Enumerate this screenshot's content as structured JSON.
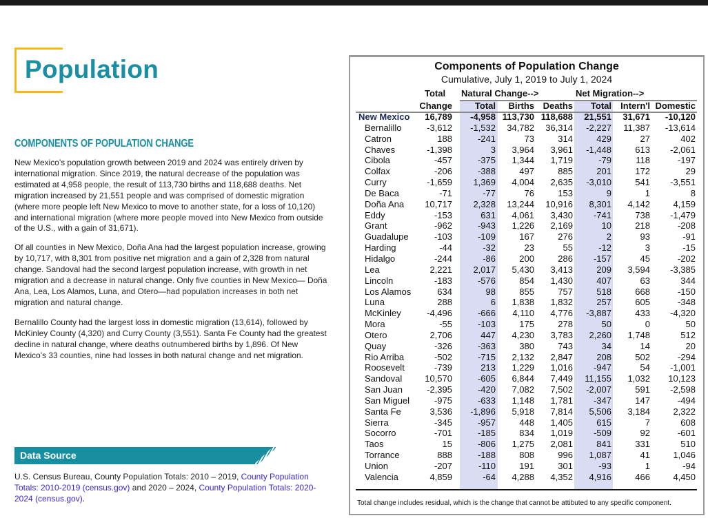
{
  "page": {
    "title": "Population",
    "section_heading": "COMPONENTS OF POPULATION CHANGE",
    "paragraphs": [
      "New Mexico’s population growth between 2019 and 2024 was entirely driven by international migration. Since 2019, the natural decrease of the population was estimated at 4,958 people, the result of 113,730 births and 118,688 deaths. Net migration increased by 21,551 people and was comprised of domestic migration (where more people left New Mexico to move to another state, for a loss of 10,120) and international migration (where more people moved into New Mexico from outside of the U.S., with a gain of 31,671).",
      "Of all counties in New Mexico, Doña Ana had the largest population increase, growing by 10,717, with 8,301 from positive net migration and a gain of 2,328 from natural change. Sandoval had the second largest population increase, with growth in net migration and a decrease in natural change. Only five counties in New Mexico— Doña Ana, Lea, Los Alamos, Luna, and Otero—had population increases in both net migration and natural change.",
      "Bernalillo County had the largest loss in domestic migration (13,614), followed by McKinley County (4,320) and Curry County (3,551). Santa Fe County had the greatest decline in natural change, where deaths outnumbered births by 1,896. Of New Mexico’s 33 counties, nine had losses in both natural change and net migration."
    ],
    "data_source": {
      "label": "Data Source",
      "text1": "U.S. Census Bureau, County Population Totals: 2010 – 2019, ",
      "link1": "County Population Totals: 2010-2019 (census.gov)",
      "text2": " and 2020 – 2024, ",
      "link2": "County Population Totals: 2020-2024 (census.gov)",
      "text3": "."
    }
  },
  "table": {
    "title": "Components of Population Change",
    "subtitle": "Cumulative, July 1, 2019 to July 1, 2024",
    "group_headers": {
      "total": "Total",
      "natural": "Natural Change-->",
      "migration": "Net Migration-->"
    },
    "columns": [
      "Change",
      "Total",
      "Births",
      "Deaths",
      "Total",
      "Intern'l",
      "Domestic"
    ],
    "rows": [
      [
        "New Mexico",
        "16,789",
        "-4,958",
        "113,730",
        "118,688",
        "21,551",
        "31,671",
        "-10,120"
      ],
      [
        "Bernalillo",
        "-3,612",
        "-1,532",
        "34,782",
        "36,314",
        "-2,227",
        "11,387",
        "-13,614"
      ],
      [
        "Catron",
        "188",
        "-241",
        "73",
        "314",
        "429",
        "27",
        "402"
      ],
      [
        "Chaves",
        "-1,398",
        "3",
        "3,964",
        "3,961",
        "-1,448",
        "613",
        "-2,061"
      ],
      [
        "Cibola",
        "-457",
        "-375",
        "1,344",
        "1,719",
        "-79",
        "118",
        "-197"
      ],
      [
        "Colfax",
        "-206",
        "-388",
        "497",
        "885",
        "201",
        "172",
        "29"
      ],
      [
        "Curry",
        "-1,659",
        "1,369",
        "4,004",
        "2,635",
        "-3,010",
        "541",
        "-3,551"
      ],
      [
        "De Baca",
        "-71",
        "-77",
        "76",
        "153",
        "9",
        "1",
        "8"
      ],
      [
        "Doña Ana",
        "10,717",
        "2,328",
        "13,244",
        "10,916",
        "8,301",
        "4,142",
        "4,159"
      ],
      [
        "Eddy",
        "-153",
        "631",
        "4,061",
        "3,430",
        "-741",
        "738",
        "-1,479"
      ],
      [
        "Grant",
        "-962",
        "-943",
        "1,226",
        "2,169",
        "10",
        "218",
        "-208"
      ],
      [
        "Guadalupe",
        "-103",
        "-109",
        "167",
        "276",
        "2",
        "93",
        "-91"
      ],
      [
        "Harding",
        "-44",
        "-32",
        "23",
        "55",
        "-12",
        "3",
        "-15"
      ],
      [
        "Hidalgo",
        "-244",
        "-86",
        "200",
        "286",
        "-157",
        "45",
        "-202"
      ],
      [
        "Lea",
        "2,221",
        "2,017",
        "5,430",
        "3,413",
        "209",
        "3,594",
        "-3,385"
      ],
      [
        "Lincoln",
        "-183",
        "-576",
        "854",
        "1,430",
        "407",
        "63",
        "344"
      ],
      [
        "Los Alamos",
        "634",
        "98",
        "855",
        "757",
        "518",
        "668",
        "-150"
      ],
      [
        "Luna",
        "288",
        "6",
        "1,838",
        "1,832",
        "257",
        "605",
        "-348"
      ],
      [
        "McKinley",
        "-4,496",
        "-666",
        "4,110",
        "4,776",
        "-3,887",
        "433",
        "-4,320"
      ],
      [
        "Mora",
        "-55",
        "-103",
        "175",
        "278",
        "50",
        "0",
        "50"
      ],
      [
        "Otero",
        "2,706",
        "447",
        "4,230",
        "3,783",
        "2,260",
        "1,748",
        "512"
      ],
      [
        "Quay",
        "-326",
        "-363",
        "380",
        "743",
        "34",
        "14",
        "20"
      ],
      [
        "Rio Arriba",
        "-502",
        "-715",
        "2,132",
        "2,847",
        "208",
        "502",
        "-294"
      ],
      [
        "Roosevelt",
        "-739",
        "213",
        "1,229",
        "1,016",
        "-947",
        "54",
        "-1,001"
      ],
      [
        "Sandoval",
        "10,570",
        "-605",
        "6,844",
        "7,449",
        "11,155",
        "1,032",
        "10,123"
      ],
      [
        "San Juan",
        "-2,395",
        "-420",
        "7,082",
        "7,502",
        "-2,007",
        "591",
        "-2,598"
      ],
      [
        "San Miguel",
        "-975",
        "-633",
        "1,148",
        "1,781",
        "-347",
        "147",
        "-494"
      ],
      [
        "Santa Fe",
        "3,536",
        "-1,896",
        "5,918",
        "7,814",
        "5,506",
        "3,184",
        "2,322"
      ],
      [
        "Sierra",
        "-345",
        "-957",
        "448",
        "1,405",
        "615",
        "7",
        "608"
      ],
      [
        "Socorro",
        "-701",
        "-185",
        "834",
        "1,019",
        "-509",
        "92",
        "-601"
      ],
      [
        "Taos",
        "15",
        "-806",
        "1,275",
        "2,081",
        "841",
        "331",
        "510"
      ],
      [
        "Torrance",
        "888",
        "-188",
        "808",
        "996",
        "1,087",
        "41",
        "1,046"
      ],
      [
        "Union",
        "-207",
        "-110",
        "191",
        "301",
        "-93",
        "1",
        "-94"
      ],
      [
        "Valencia",
        "4,859",
        "-64",
        "4,288",
        "4,352",
        "4,916",
        "466",
        "4,450"
      ]
    ],
    "footnote": "Total change includes residual, which is the change that cannot be attibuted to any specific component."
  },
  "colors": {
    "accent": "#1a8fa3",
    "logo_frame": "#f9b91a",
    "shade": "#d9dcf2",
    "link": "#3a25d6"
  }
}
